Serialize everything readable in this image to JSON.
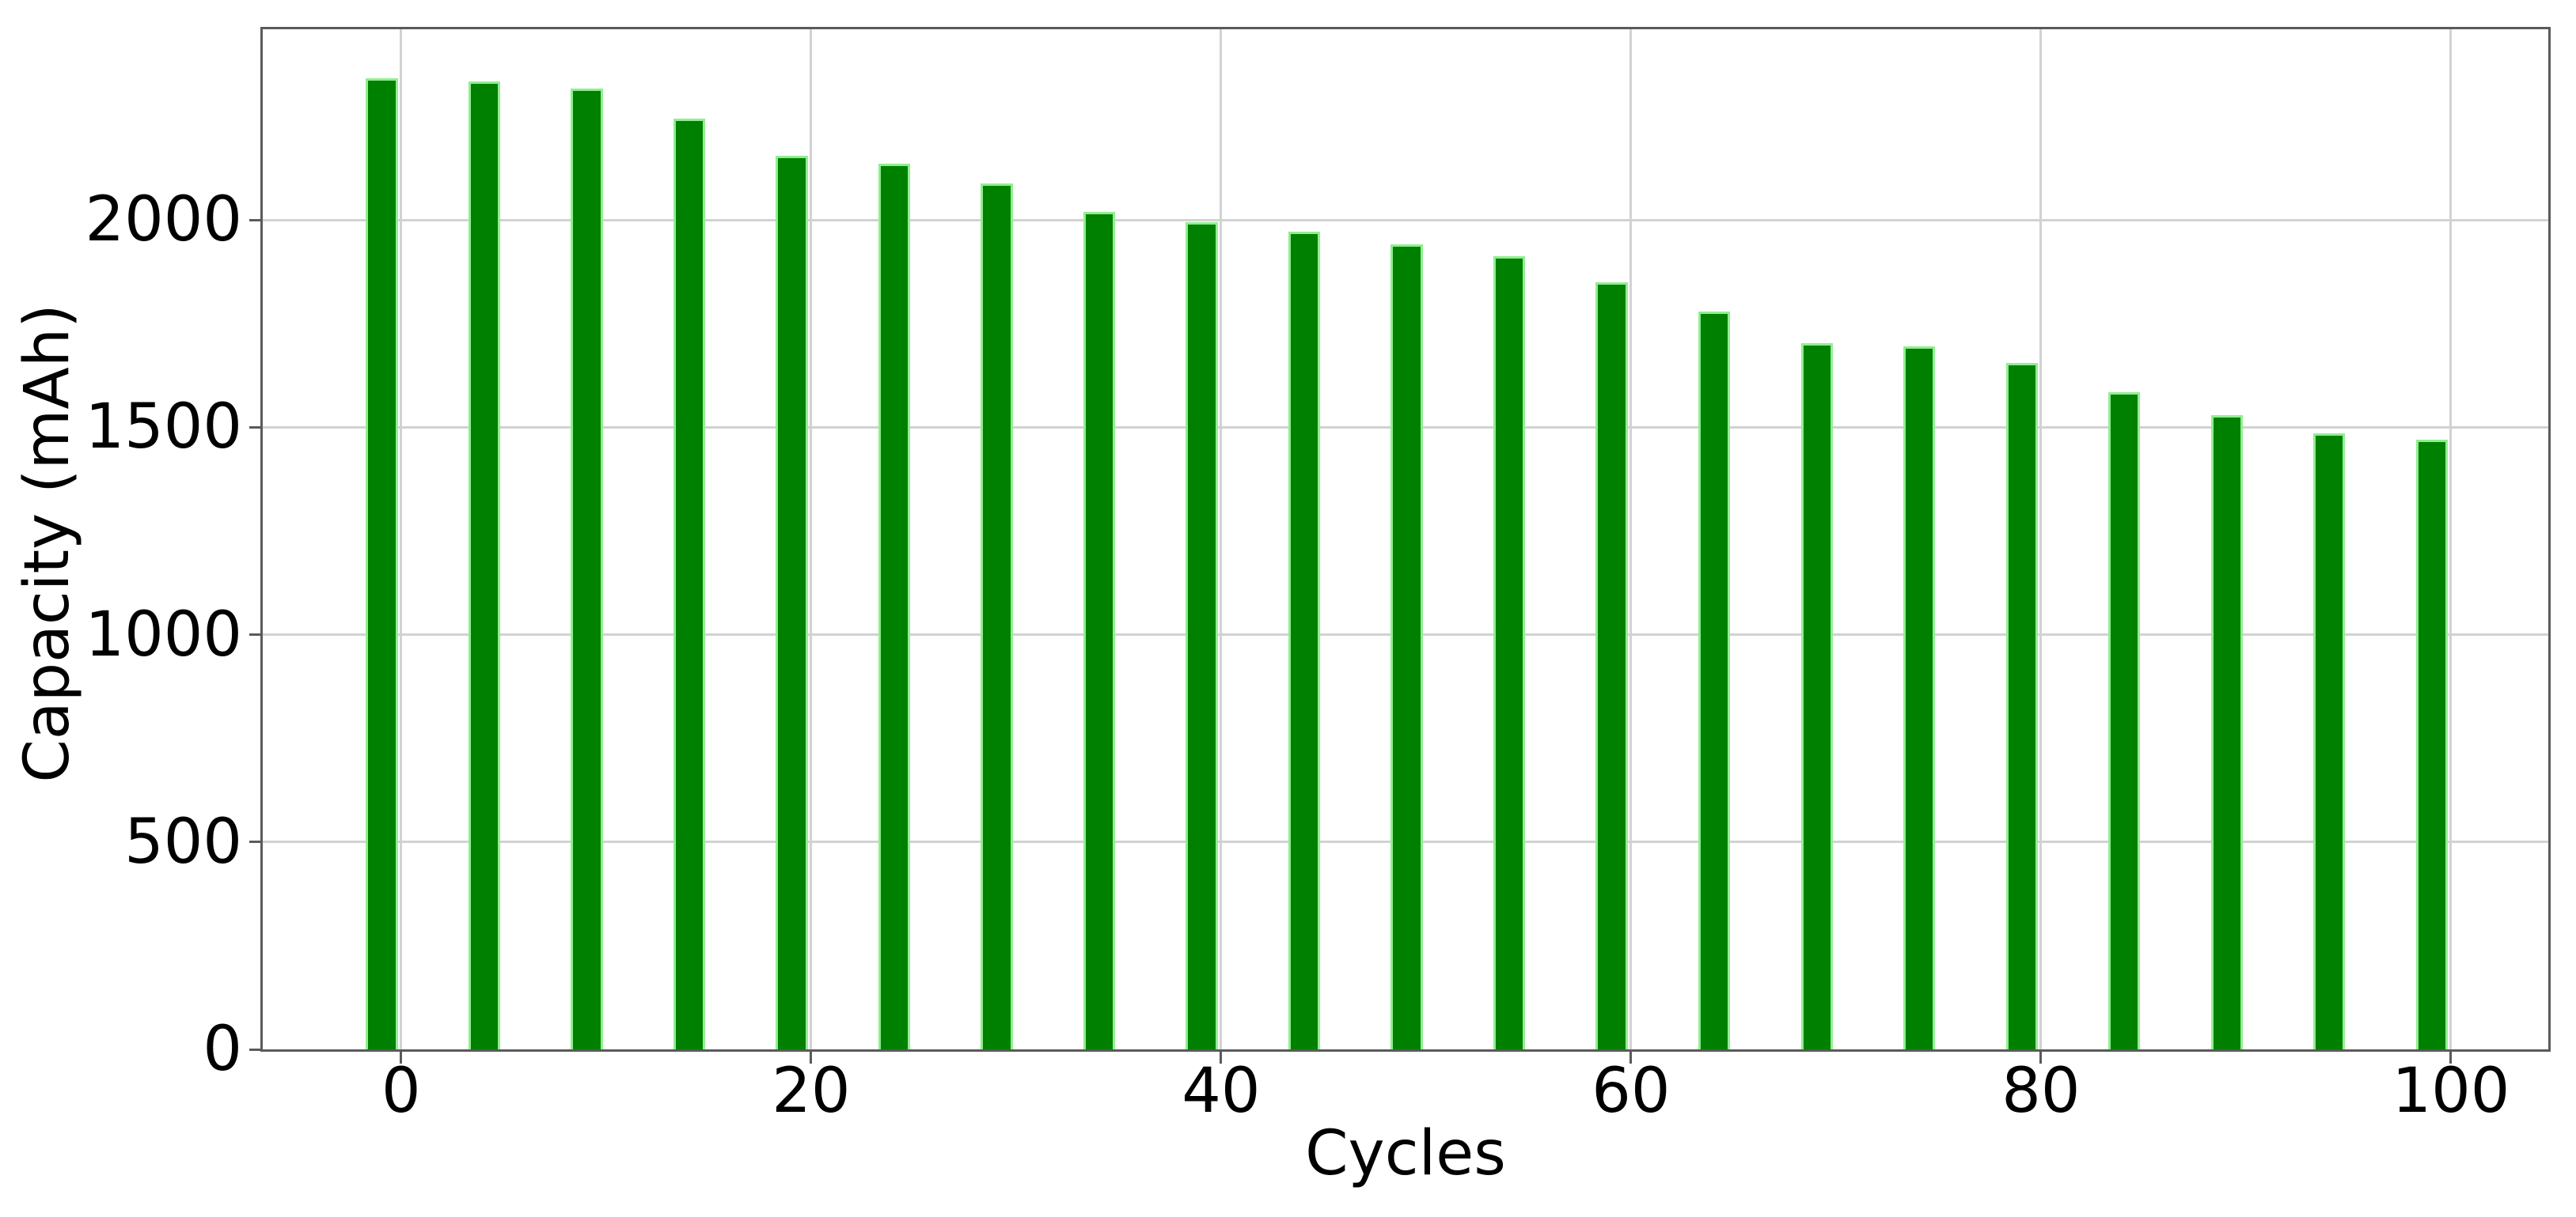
{
  "chart_data": {
    "type": "bar",
    "title": "",
    "xlabel": "Cycles",
    "ylabel": "Capacity (mAh)",
    "categories": [
      0,
      5,
      10,
      15,
      20,
      25,
      30,
      35,
      40,
      45,
      50,
      55,
      60,
      65,
      70,
      75,
      80,
      85,
      90,
      95,
      100
    ],
    "values": [
      2342,
      2334,
      2317,
      2245,
      2154,
      2136,
      2089,
      2019,
      1995,
      1971,
      1941,
      1913,
      1850,
      1780,
      1703,
      1695,
      1655,
      1585,
      1530,
      1486,
      1471
    ],
    "xticks": [
      0,
      20,
      40,
      60,
      80,
      100
    ],
    "xtick_labels": [
      "0",
      "20",
      "40",
      "60",
      "80",
      "100"
    ],
    "yticks": [
      0,
      500,
      1000,
      1500,
      2000
    ],
    "ytick_labels": [
      "0",
      "500",
      "1000",
      "1500",
      "2000"
    ],
    "xlim": [
      -6.75,
      104.75
    ],
    "ylim": [
      0,
      2460
    ],
    "bar_center_offset_cycles": -0.94,
    "bar_width_cycles": 1.55,
    "grid": true,
    "legend": null,
    "bar_color": "#008000",
    "bar_edge_color": "#90ee90",
    "grid_color": "#d2d2d2",
    "spine_color": "#5a5a5a",
    "text_color": "#000000",
    "background_color": "#ffffff"
  }
}
